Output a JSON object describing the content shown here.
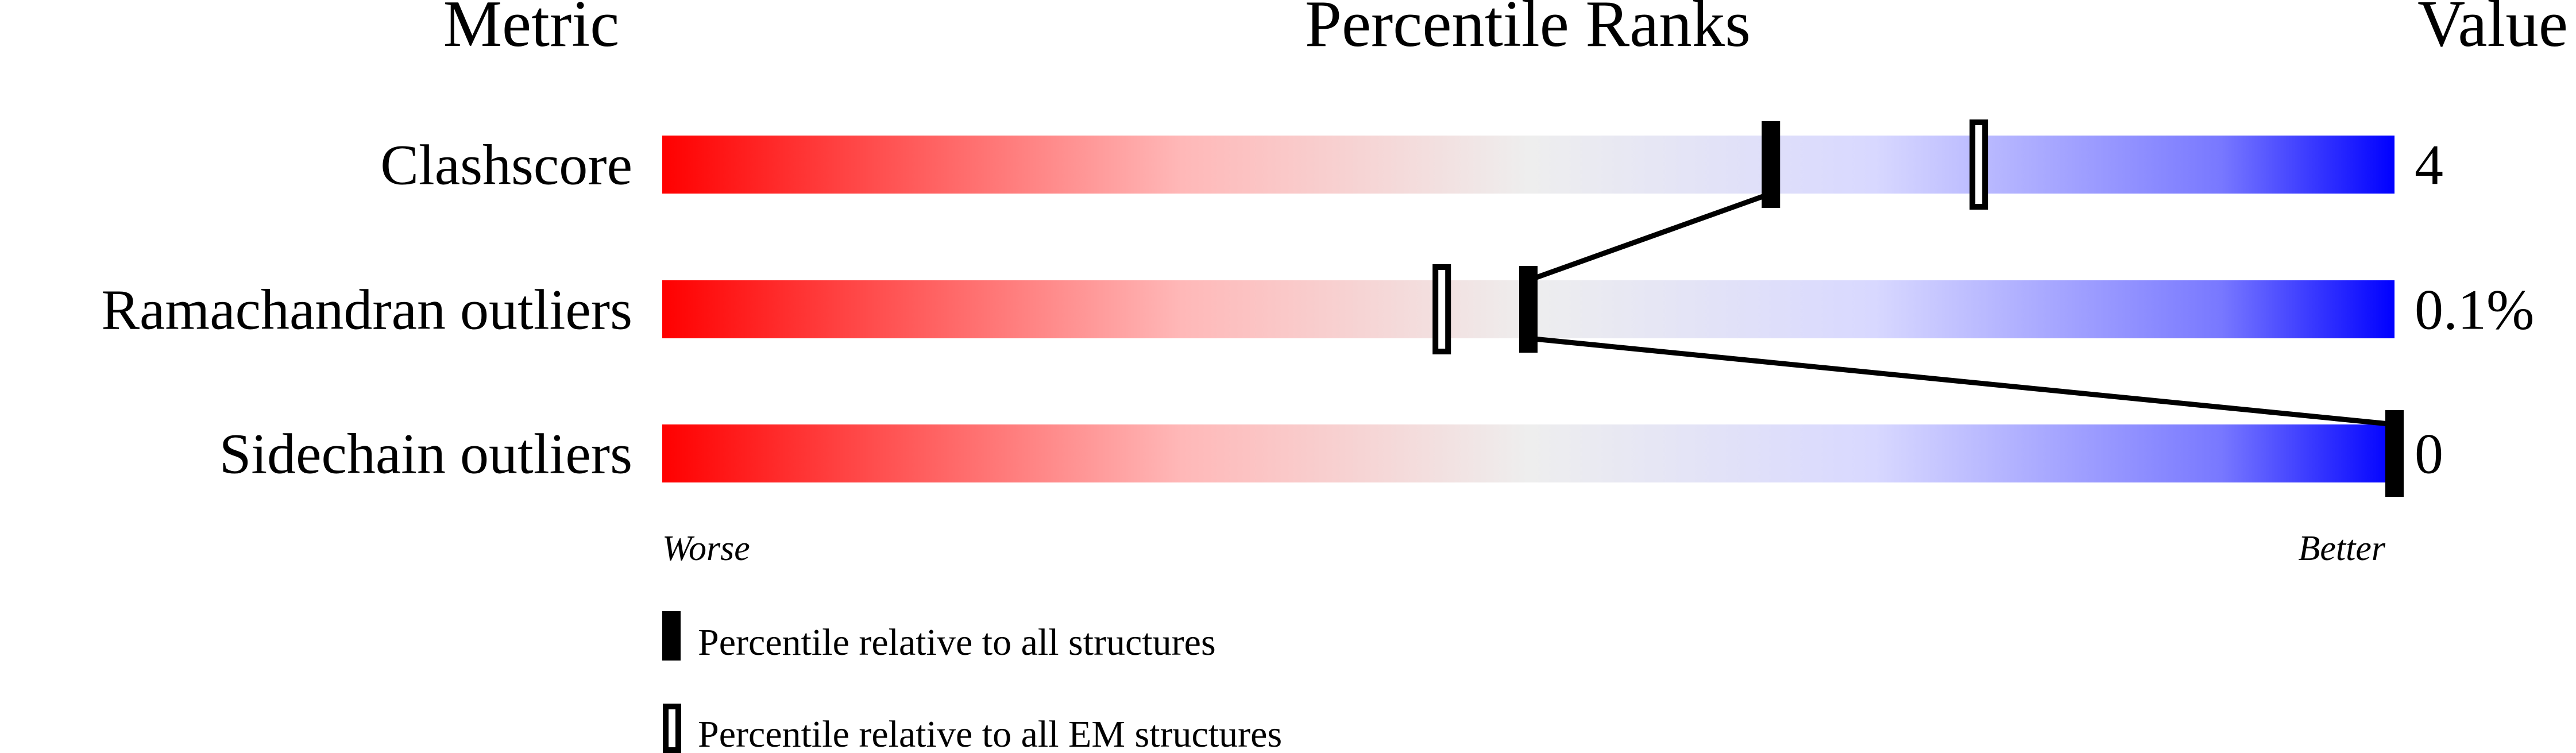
{
  "chart_data": {
    "type": "percentile-ranks",
    "headers": {
      "metric": "Metric",
      "ranks": "Percentile Ranks",
      "value": "Value"
    },
    "xlim": [
      0,
      100
    ],
    "scale_labels": {
      "worse": "Worse",
      "better": "Better"
    },
    "gradient_colors": [
      "#ff0000",
      "#eeeeee",
      "#0000ff"
    ],
    "rows": [
      {
        "metric": "Clashscore",
        "value": "4",
        "percentile_all": 64,
        "percentile_em": 76
      },
      {
        "metric": "Ramachandran outliers",
        "value": "0.1%",
        "percentile_all": 50,
        "percentile_em": 45
      },
      {
        "metric": "Sidechain outliers",
        "value": "0",
        "percentile_all": 100,
        "percentile_em": null
      }
    ],
    "legend": {
      "all": "Percentile relative to all structures",
      "em": "Percentile relative to all EM structures"
    }
  }
}
